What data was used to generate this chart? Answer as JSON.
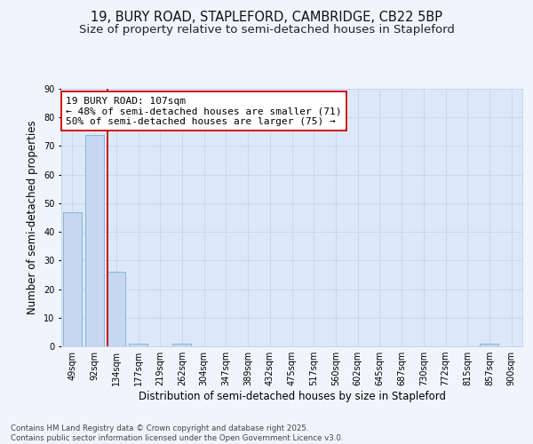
{
  "title": "19, BURY ROAD, STAPLEFORD, CAMBRIDGE, CB22 5BP",
  "subtitle": "Size of property relative to semi-detached houses in Stapleford",
  "xlabel": "Distribution of semi-detached houses by size in Stapleford",
  "ylabel": "Number of semi-detached properties",
  "categories": [
    "49sqm",
    "92sqm",
    "134sqm",
    "177sqm",
    "219sqm",
    "262sqm",
    "304sqm",
    "347sqm",
    "389sqm",
    "432sqm",
    "475sqm",
    "517sqm",
    "560sqm",
    "602sqm",
    "645sqm",
    "687sqm",
    "730sqm",
    "772sqm",
    "815sqm",
    "857sqm",
    "900sqm"
  ],
  "values": [
    47,
    74,
    26,
    1,
    0,
    1,
    0,
    0,
    0,
    0,
    0,
    0,
    0,
    0,
    0,
    0,
    0,
    0,
    0,
    1,
    0
  ],
  "bar_color": "#c5d8f0",
  "bar_edge_color": "#7aafd4",
  "property_line_color": "#cc0000",
  "annotation_text": "19 BURY ROAD: 107sqm\n← 48% of semi-detached houses are smaller (71)\n50% of semi-detached houses are larger (75) →",
  "annotation_box_color": "#ffffff",
  "annotation_box_edge": "#cc0000",
  "ylim": [
    0,
    90
  ],
  "yticks": [
    0,
    10,
    20,
    30,
    40,
    50,
    60,
    70,
    80,
    90
  ],
  "grid_color": "#c8d4e8",
  "background_color": "#dce8f8",
  "fig_background": "#f0f4fc",
  "footer_line1": "Contains HM Land Registry data © Crown copyright and database right 2025.",
  "footer_line2": "Contains public sector information licensed under the Open Government Licence v3.0.",
  "title_fontsize": 10.5,
  "subtitle_fontsize": 9.5,
  "tick_fontsize": 7,
  "ylabel_fontsize": 8.5,
  "xlabel_fontsize": 8.5,
  "annotation_fontsize": 8,
  "footer_fontsize": 6.2,
  "red_line_x": 1.6
}
